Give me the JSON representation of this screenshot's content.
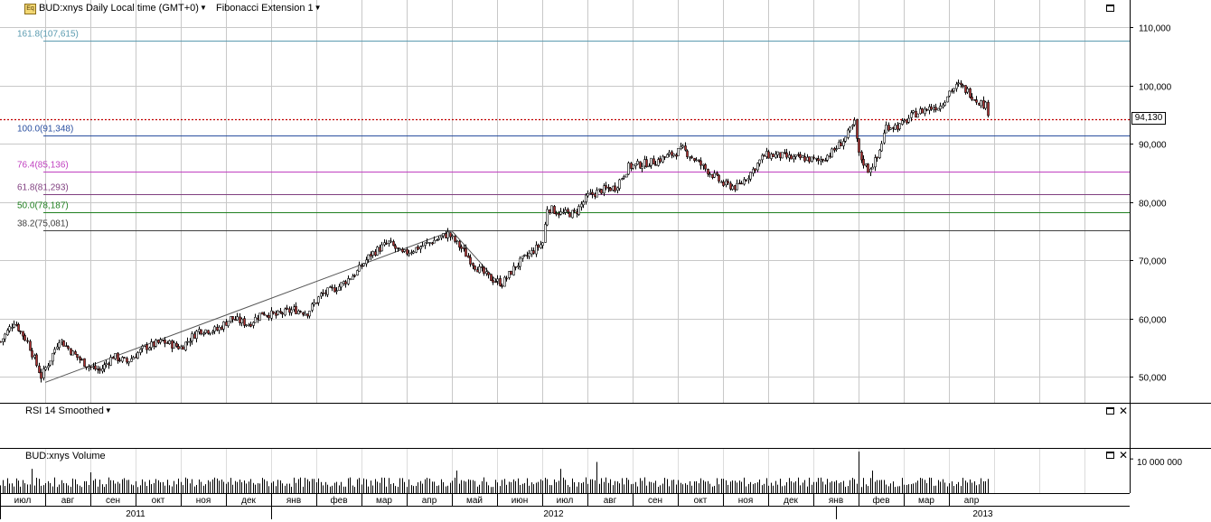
{
  "header": {
    "symbol_title": "BUD:xnys Daily Local time (GMT+0)",
    "study_label": "Fibonacci Extension 1"
  },
  "rsi_panel": {
    "title": "RSI 14 Smoothed"
  },
  "volume_panel": {
    "title": "BUD:xnys Volume",
    "axis_label": "10 000 000"
  },
  "price_tag": "94,130",
  "colors": {
    "up_candle": "#ffffff",
    "down_candle": "#b03030",
    "last_price_line": "#c00000",
    "grid": "#c8c8c8"
  },
  "chart_data": {
    "type": "candlestick",
    "title": "BUD:xnys Daily Local time (GMT+0)",
    "y_axis": {
      "ticks": [
        "50,000",
        "60,000",
        "70,000",
        "80,000",
        "90,000",
        "100,000",
        "110,000"
      ],
      "range": [
        44000,
        115000
      ]
    },
    "months": [
      "июл",
      "авг",
      "сен",
      "окт",
      "ноя",
      "дек",
      "янв",
      "фев",
      "мар",
      "апр",
      "май",
      "июн",
      "июл",
      "авг",
      "сен",
      "окт",
      "ноя",
      "дек",
      "янв",
      "фев",
      "мар",
      "апр"
    ],
    "years": [
      "2011",
      "2012",
      "2013"
    ],
    "fibonacci_levels": [
      {
        "label": "161.8(107,615)",
        "value": 107615,
        "color": "#5b9bb0"
      },
      {
        "label": "100.0(91,348)",
        "value": 91348,
        "color": "#2a4fa0"
      },
      {
        "label": "76.4(85,136)",
        "value": 85136,
        "color": "#c040c0"
      },
      {
        "label": "61.8(81,293)",
        "value": 81293,
        "color": "#804080"
      },
      {
        "label": "50.0(78,187)",
        "value": 78187,
        "color": "#208020"
      },
      {
        "label": "38.2(75,081)",
        "value": 75081,
        "color": "#404040"
      }
    ],
    "last_price": 94130,
    "fib_anchor_points": [
      {
        "month_pos": 1.0,
        "value": 49000
      },
      {
        "month_pos": 10.0,
        "value": 75000
      },
      {
        "month_pos": 11.1,
        "value": 65500
      }
    ],
    "price_path": [
      {
        "m": 0.0,
        "v": 56000
      },
      {
        "m": 0.3,
        "v": 59500
      },
      {
        "m": 0.6,
        "v": 56000
      },
      {
        "m": 0.9,
        "v": 50000
      },
      {
        "m": 1.1,
        "v": 53000
      },
      {
        "m": 1.3,
        "v": 56500
      },
      {
        "m": 1.6,
        "v": 54000
      },
      {
        "m": 1.9,
        "v": 52000
      },
      {
        "m": 2.2,
        "v": 51000
      },
      {
        "m": 2.5,
        "v": 53500
      },
      {
        "m": 2.8,
        "v": 52500
      },
      {
        "m": 3.2,
        "v": 55000
      },
      {
        "m": 3.6,
        "v": 56000
      },
      {
        "m": 4.0,
        "v": 55000
      },
      {
        "m": 4.4,
        "v": 58000
      },
      {
        "m": 4.8,
        "v": 58000
      },
      {
        "m": 5.1,
        "v": 60000
      },
      {
        "m": 5.5,
        "v": 59000
      },
      {
        "m": 5.8,
        "v": 61000
      },
      {
        "m": 6.1,
        "v": 60500
      },
      {
        "m": 6.5,
        "v": 61500
      },
      {
        "m": 6.8,
        "v": 61000
      },
      {
        "m": 7.1,
        "v": 64000
      },
      {
        "m": 7.5,
        "v": 65500
      },
      {
        "m": 7.9,
        "v": 68000
      },
      {
        "m": 8.2,
        "v": 71000
      },
      {
        "m": 8.6,
        "v": 73000
      },
      {
        "m": 8.9,
        "v": 71000
      },
      {
        "m": 9.2,
        "v": 72000
      },
      {
        "m": 9.5,
        "v": 73000
      },
      {
        "m": 9.9,
        "v": 74500
      },
      {
        "m": 10.2,
        "v": 72000
      },
      {
        "m": 10.5,
        "v": 69000
      },
      {
        "m": 10.8,
        "v": 67000
      },
      {
        "m": 11.1,
        "v": 66000
      },
      {
        "m": 11.4,
        "v": 69000
      },
      {
        "m": 11.7,
        "v": 71000
      },
      {
        "m": 12.0,
        "v": 73000
      },
      {
        "m": 12.1,
        "v": 79000
      },
      {
        "m": 12.4,
        "v": 78000
      },
      {
        "m": 12.7,
        "v": 78000
      },
      {
        "m": 13.0,
        "v": 81000
      },
      {
        "m": 13.3,
        "v": 82000
      },
      {
        "m": 13.6,
        "v": 82500
      },
      {
        "m": 13.9,
        "v": 86000
      },
      {
        "m": 14.2,
        "v": 86500
      },
      {
        "m": 14.5,
        "v": 87000
      },
      {
        "m": 14.8,
        "v": 88000
      },
      {
        "m": 15.1,
        "v": 89000
      },
      {
        "m": 15.4,
        "v": 87000
      },
      {
        "m": 15.7,
        "v": 85000
      },
      {
        "m": 16.0,
        "v": 83000
      },
      {
        "m": 16.3,
        "v": 82500
      },
      {
        "m": 16.6,
        "v": 85000
      },
      {
        "m": 16.9,
        "v": 88000
      },
      {
        "m": 17.2,
        "v": 88000
      },
      {
        "m": 17.5,
        "v": 87500
      },
      {
        "m": 17.8,
        "v": 87500
      },
      {
        "m": 18.1,
        "v": 87000
      },
      {
        "m": 18.4,
        "v": 88500
      },
      {
        "m": 18.7,
        "v": 91000
      },
      {
        "m": 18.9,
        "v": 93500
      },
      {
        "m": 19.0,
        "v": 88000
      },
      {
        "m": 19.2,
        "v": 85500
      },
      {
        "m": 19.4,
        "v": 87500
      },
      {
        "m": 19.6,
        "v": 93000
      },
      {
        "m": 19.9,
        "v": 93000
      },
      {
        "m": 20.2,
        "v": 95000
      },
      {
        "m": 20.5,
        "v": 96000
      },
      {
        "m": 20.8,
        "v": 96500
      },
      {
        "m": 21.0,
        "v": 99000
      },
      {
        "m": 21.2,
        "v": 100000
      },
      {
        "m": 21.4,
        "v": 99000
      },
      {
        "m": 21.6,
        "v": 97500
      },
      {
        "m": 21.8,
        "v": 96500
      },
      {
        "m": 21.9,
        "v": 94500
      }
    ],
    "volume": {
      "unit": "shares",
      "base": 3500000,
      "spikes": [
        {
          "m": 0.7,
          "v": 7000000
        },
        {
          "m": 2.0,
          "v": 6000000
        },
        {
          "m": 10.1,
          "v": 6500000
        },
        {
          "m": 12.4,
          "v": 7000000
        },
        {
          "m": 13.2,
          "v": 9000000
        },
        {
          "m": 19.0,
          "v": 12000000
        },
        {
          "m": 19.3,
          "v": 6500000
        },
        {
          "m": 21.9,
          "v": 5500000
        }
      ]
    }
  }
}
